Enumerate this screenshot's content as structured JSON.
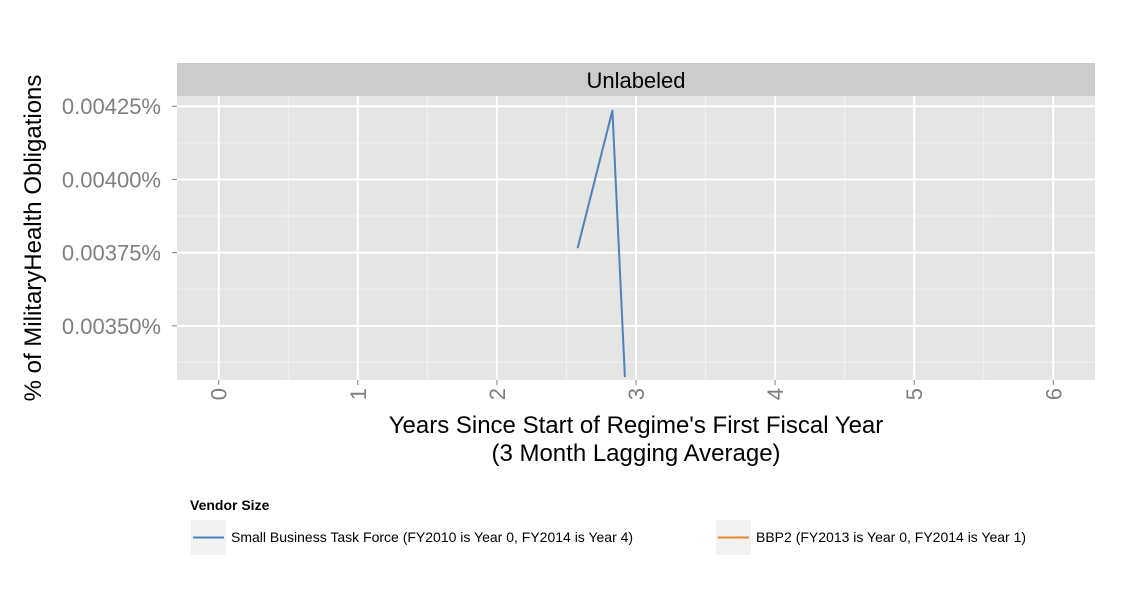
{
  "chart_data": {
    "type": "line",
    "facet_label": "Unlabeled",
    "xlabel_line1": "Years Since Start of Regime's First Fiscal Year",
    "xlabel_line2": "(3 Month Lagging Average)",
    "ylabel": "% of MilitaryHealth Obligations",
    "xlim": [
      -0.3,
      6.3
    ],
    "ylim": [
      0.003315,
      0.004285
    ],
    "x_ticks": [
      0,
      1,
      2,
      3,
      4,
      5,
      6
    ],
    "x_tick_labels": [
      "0",
      "1",
      "2",
      "3",
      "4",
      "5",
      "6"
    ],
    "y_ticks": [
      0.0035,
      0.00375,
      0.004,
      0.00425
    ],
    "y_tick_labels": [
      "0.00350%",
      "0.00375%",
      "0.00400%",
      "0.00425%"
    ],
    "grid": true,
    "legend_title": "Vendor Size",
    "legend_position": "bottom",
    "series": [
      {
        "name": "Small Business Task Force (FY2010 is Year 0, FY2014 is Year 4)",
        "color": "#4f81bd",
        "x": [
          2.58,
          2.83,
          2.92
        ],
        "y": [
          0.003765,
          0.004235,
          0.003325
        ]
      },
      {
        "name": "BBP2 (FY2013 is Year 0, FY2014 is Year 1)",
        "color": "#e6862f",
        "x": [],
        "y": []
      }
    ]
  }
}
